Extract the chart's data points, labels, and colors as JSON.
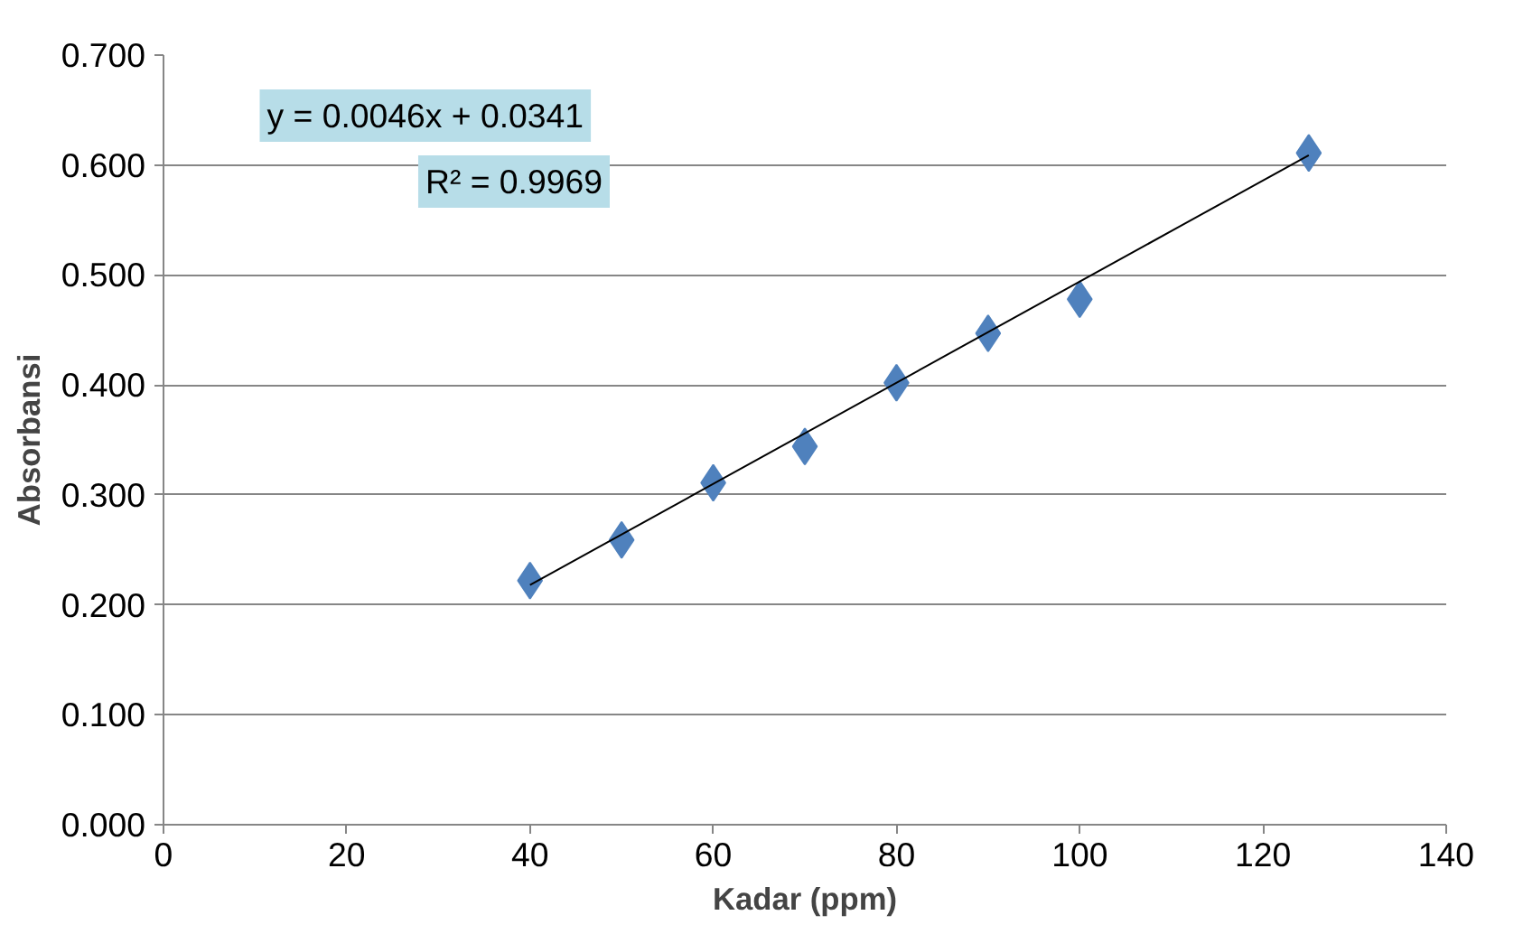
{
  "chart_data": {
    "type": "scatter",
    "xlabel": "Kadar (ppm)",
    "ylabel": "Absorbansi",
    "x": [
      40,
      50,
      60,
      70,
      80,
      90,
      100,
      125
    ],
    "series": [
      {
        "color": "#4f81bd",
        "marker": "diamond",
        "values": [
          0.222,
          0.259,
          0.311,
          0.344,
          0.402,
          0.447,
          0.478,
          0.611
        ]
      },
      {
        "type": "line",
        "color": "#000000",
        "x": [
          40,
          125
        ],
        "values": [
          0.218,
          0.609
        ]
      }
    ],
    "xlim": [
      0,
      140
    ],
    "xticks": [
      0,
      20,
      40,
      60,
      80,
      100,
      120,
      140
    ],
    "ylim": [
      0,
      0.7
    ],
    "yticks": [
      {
        "value": 0,
        "label": "0.000"
      },
      {
        "value": 0.1,
        "label": "0.100"
      },
      {
        "value": 0.2,
        "label": "0.200"
      },
      {
        "value": 0.3,
        "label": "0.300"
      },
      {
        "value": 0.4,
        "label": "0.400"
      },
      {
        "value": 0.5,
        "label": "0.500"
      },
      {
        "value": 0.6,
        "label": "0.600"
      },
      {
        "value": 0.7,
        "label": "0.700"
      }
    ],
    "grid": "y",
    "annotations": [
      "y = 0.0046x + 0.0341",
      "R² = 0.9969"
    ]
  }
}
